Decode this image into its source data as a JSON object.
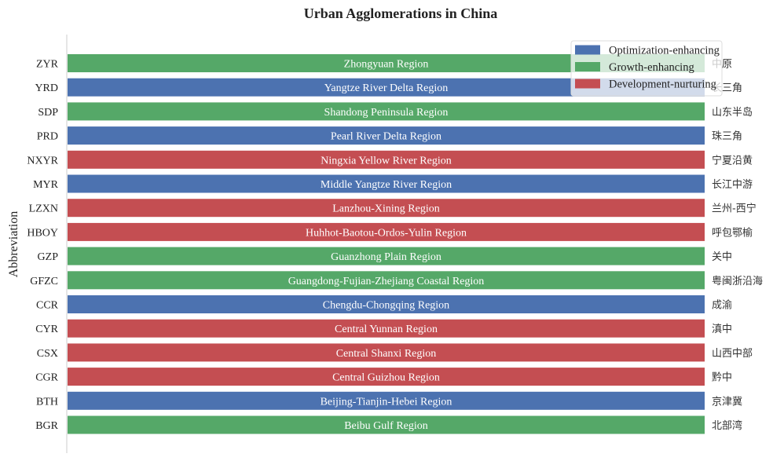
{
  "colors": {
    "Optimization-enhancing": "#4c72b0",
    "Growth-enhancing": "#55a868",
    "Development-nurturing": "#c44e52"
  },
  "chart_data": {
    "type": "bar",
    "orientation": "horizontal",
    "title": "Urban Agglomerations in China",
    "ylabel": "Abbreviation",
    "xlabel": "",
    "categories": [
      "ZYR",
      "YRD",
      "SDP",
      "PRD",
      "NXYR",
      "MYR",
      "LZXN",
      "HBOY",
      "GZP",
      "GFZC",
      "CCR",
      "CYR",
      "CSX",
      "CGR",
      "BTH",
      "BGR"
    ],
    "values": [
      1,
      1,
      1,
      1,
      1,
      1,
      1,
      1,
      1,
      1,
      1,
      1,
      1,
      1,
      1,
      1
    ],
    "bar_labels": [
      "Zhongyuan Region",
      "Yangtze River Delta Region",
      "Shandong Peninsula Region",
      "Pearl River Delta Region",
      "Ningxia Yellow River Region",
      "Middle Yangtze River Region",
      "Lanzhou-Xining Region",
      "Huhhot-Baotou-Ordos-Yulin Region",
      "Guanzhong Plain Region",
      "Guangdong-Fujian-Zhejiang Coastal Region",
      "Chengdu-Chongqing Region",
      "Central Yunnan Region",
      "Central Shanxi Region",
      "Central Guizhou Region",
      "Beijing-Tianjin-Hebei Region",
      "Beibu Gulf Region"
    ],
    "chinese_labels": [
      "中原",
      "长三角",
      "山东半岛",
      "珠三角",
      "宁夏沿黄",
      "长江中游",
      "兰州-西宁",
      "呼包鄂榆",
      "关中",
      "粤闽浙沿海",
      "成渝",
      "滇中",
      "山西中部",
      "黔中",
      "京津冀",
      "北部湾"
    ],
    "groups": [
      "Growth-enhancing",
      "Optimization-enhancing",
      "Growth-enhancing",
      "Optimization-enhancing",
      "Development-nurturing",
      "Optimization-enhancing",
      "Development-nurturing",
      "Development-nurturing",
      "Growth-enhancing",
      "Growth-enhancing",
      "Optimization-enhancing",
      "Development-nurturing",
      "Development-nurturing",
      "Development-nurturing",
      "Optimization-enhancing",
      "Growth-enhancing"
    ],
    "legend": [
      "Optimization-enhancing",
      "Growth-enhancing",
      "Development-nurturing"
    ],
    "legend_position": "top-right",
    "xlim": [
      0,
      1
    ],
    "grid": false
  }
}
